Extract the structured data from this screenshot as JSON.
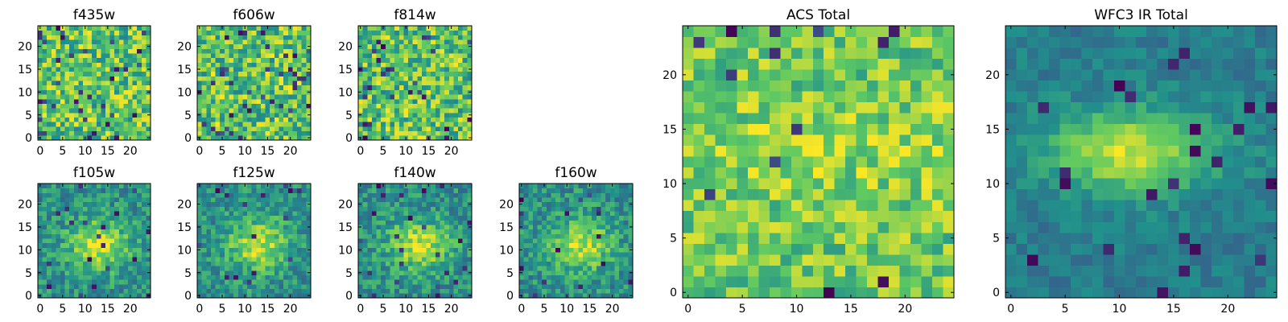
{
  "figure_description": "Grid of heat-map image cutouts per HST filter plus summed panels",
  "chart_data": [
    {
      "type": "heatmap",
      "title": "f435w",
      "grid": 25,
      "style": "noise",
      "seed": 11,
      "xticks": [
        0,
        5,
        10,
        15,
        20
      ],
      "yticks": [
        0,
        5,
        10,
        15,
        20
      ],
      "xlim": [
        -0.5,
        24.5
      ],
      "ylim": [
        -0.5,
        24.5
      ]
    },
    {
      "type": "heatmap",
      "title": "f606w",
      "grid": 25,
      "style": "noise",
      "seed": 23,
      "xticks": [
        0,
        5,
        10,
        15,
        20
      ],
      "yticks": [
        0,
        5,
        10,
        15,
        20
      ],
      "xlim": [
        -0.5,
        24.5
      ],
      "ylim": [
        -0.5,
        24.5
      ]
    },
    {
      "type": "heatmap",
      "title": "f814w",
      "grid": 25,
      "style": "noise",
      "seed": 37,
      "xticks": [
        0,
        5,
        10,
        15,
        20
      ],
      "yticks": [
        0,
        5,
        10,
        15,
        20
      ],
      "xlim": [
        -0.5,
        24.5
      ],
      "ylim": [
        -0.5,
        24.5
      ]
    },
    {
      "type": "heatmap",
      "title": "f105w",
      "grid": 25,
      "style": "ir",
      "seed": 41,
      "xticks": [
        0,
        5,
        10,
        15,
        20
      ],
      "yticks": [
        0,
        5,
        10,
        15,
        20
      ],
      "xlim": [
        -0.5,
        24.5
      ],
      "ylim": [
        -0.5,
        24.5
      ]
    },
    {
      "type": "heatmap",
      "title": "f125w",
      "grid": 25,
      "style": "ir",
      "seed": 53,
      "xticks": [
        0,
        5,
        10,
        15,
        20
      ],
      "yticks": [
        0,
        5,
        10,
        15,
        20
      ],
      "xlim": [
        -0.5,
        24.5
      ],
      "ylim": [
        -0.5,
        24.5
      ]
    },
    {
      "type": "heatmap",
      "title": "f140w",
      "grid": 25,
      "style": "ir",
      "seed": 67,
      "xticks": [
        0,
        5,
        10,
        15,
        20
      ],
      "yticks": [
        0,
        5,
        10,
        15,
        20
      ],
      "xlim": [
        -0.5,
        24.5
      ],
      "ylim": [
        -0.5,
        24.5
      ]
    },
    {
      "type": "heatmap",
      "title": "f160w",
      "grid": 25,
      "style": "ir",
      "seed": 79,
      "xticks": [
        0,
        5,
        10,
        15,
        20
      ],
      "yticks": [
        0,
        5,
        10,
        15,
        20
      ],
      "xlim": [
        -0.5,
        24.5
      ],
      "ylim": [
        -0.5,
        24.5
      ]
    },
    {
      "type": "heatmap",
      "title": "ACS Total",
      "grid": 25,
      "style": "acs",
      "seed": 97,
      "xticks": [
        0,
        5,
        10,
        15,
        20
      ],
      "yticks": [
        0,
        5,
        10,
        15,
        20
      ],
      "xlim": [
        -0.5,
        24.5
      ],
      "ylim": [
        -0.5,
        24.5
      ]
    },
    {
      "type": "heatmap",
      "title": "WFC3 IR Total",
      "grid": 25,
      "style": "wfc3",
      "seed": 131,
      "xticks": [
        0,
        5,
        10,
        15,
        20
      ],
      "yticks": [
        0,
        5,
        10,
        15,
        20
      ],
      "xlim": [
        -0.5,
        24.5
      ],
      "ylim": [
        -0.5,
        24.5
      ]
    }
  ],
  "colormap": [
    "#440154",
    "#3b528b",
    "#21918c",
    "#5ec962",
    "#fde725"
  ]
}
